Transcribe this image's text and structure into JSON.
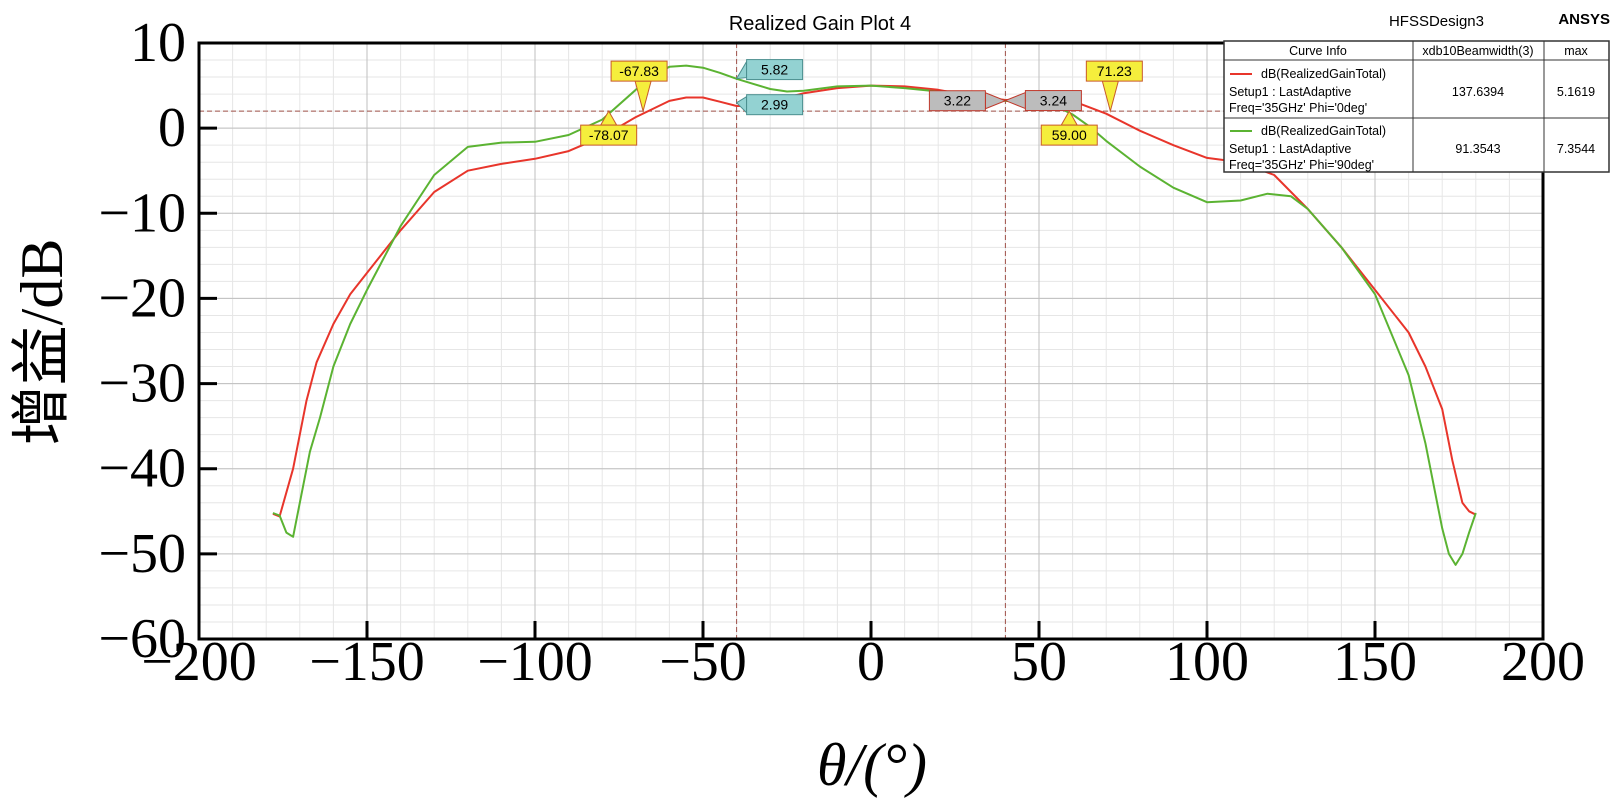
{
  "header": {
    "title": "Realized Gain Plot 4",
    "design": "HFSSDesign3",
    "brand": "ANSYS"
  },
  "chart_data": {
    "type": "line",
    "title": "Realized Gain Plot 4",
    "xlabel": "θ/(°)",
    "ylabel": "增益/dB",
    "xlim": [
      -200,
      200
    ],
    "ylim": [
      -60,
      10
    ],
    "xticks": [
      "−200",
      "−150",
      "−100",
      "−50",
      "0",
      "50",
      "100",
      "150",
      "200"
    ],
    "yticks": [
      "10",
      "0",
      "−10",
      "−20",
      "−30",
      "−40",
      "−50",
      "−60"
    ],
    "grid": true,
    "legend_position": "top-right",
    "series": [
      {
        "name": "dB(RealizedGainTotal)",
        "setup": "Setup1 : LastAdaptive",
        "variation": "Freq='35GHz' Phi='0deg'",
        "beamwidth": "137.6394",
        "max": "5.1619",
        "color": "#e8352b",
        "x": [
          -178,
          -176,
          -172,
          -168,
          -165,
          -160,
          -155,
          -150,
          -140,
          -130,
          -120,
          -110,
          -100,
          -90,
          -80,
          -70,
          -60,
          -55,
          -50,
          -45,
          -40,
          -35,
          -30,
          -20,
          -10,
          0,
          10,
          20,
          30,
          40,
          50,
          55,
          60,
          70,
          80,
          90,
          100,
          110,
          120,
          130,
          140,
          150,
          160,
          165,
          170,
          173,
          176,
          178,
          180
        ],
        "y": [
          -45.3,
          -45.6,
          -40,
          -32,
          -27.5,
          -23,
          -19.5,
          -17,
          -12,
          -7.5,
          -5,
          -4.2,
          -3.6,
          -2.7,
          -1,
          1.3,
          3.2,
          3.6,
          3.6,
          3.1,
          2.6,
          2.6,
          3.1,
          4.1,
          4.7,
          5.0,
          4.9,
          4.5,
          3.8,
          3.3,
          3.4,
          3.5,
          3.2,
          1.7,
          -0.3,
          -2,
          -3.5,
          -4,
          -5.5,
          -9.5,
          -14,
          -19,
          -24,
          -28,
          -33,
          -39,
          -44,
          -45,
          -45.4
        ]
      },
      {
        "name": "dB(RealizedGainTotal)",
        "setup": "Setup1 : LastAdaptive",
        "variation": "Freq='35GHz' Phi='90deg'",
        "beamwidth": "91.3543",
        "max": "7.3544",
        "color": "#5bb332",
        "x": [
          -178,
          -176,
          -174,
          -172,
          -170,
          -167,
          -164,
          -160,
          -155,
          -150,
          -140,
          -130,
          -120,
          -110,
          -100,
          -90,
          -80,
          -70,
          -65,
          -60,
          -55,
          -50,
          -45,
          -40,
          -35,
          -30,
          -25,
          -20,
          -10,
          0,
          10,
          20,
          30,
          40,
          50,
          55,
          60,
          65,
          70,
          80,
          90,
          100,
          110,
          118,
          125,
          130,
          140,
          150,
          160,
          165,
          170,
          172,
          174,
          176,
          178,
          180
        ],
        "y": [
          -45.2,
          -45.5,
          -47.5,
          -48,
          -44,
          -38,
          -34,
          -28,
          -23,
          -19,
          -11.5,
          -5.5,
          -2.2,
          -1.7,
          -1.6,
          -0.8,
          1.0,
          4.5,
          6.2,
          7.2,
          7.35,
          7.1,
          6.5,
          5.8,
          5.2,
          4.6,
          4.3,
          4.4,
          4.9,
          5.0,
          4.7,
          4.3,
          3.8,
          3.2,
          3.0,
          2.6,
          1.6,
          0.2,
          -1.5,
          -4.5,
          -7,
          -8.7,
          -8.5,
          -7.7,
          -8,
          -9.5,
          -14,
          -19.5,
          -29,
          -37,
          -47,
          -50,
          -51.3,
          -50,
          -47.5,
          -45.2
        ]
      }
    ],
    "markers": [
      {
        "label": "-67.83",
        "x": -67.83,
        "y": 2.0,
        "style": "yellow"
      },
      {
        "label": "-78.07",
        "x": -78.07,
        "y": 2.0,
        "style": "yellow"
      },
      {
        "label": "5.82",
        "x": -40,
        "y": 5.82,
        "style": "cyan"
      },
      {
        "label": "2.99",
        "x": -40,
        "y": 2.99,
        "style": "cyan"
      },
      {
        "label": "3.22",
        "x": 40,
        "y": 3.22,
        "style": "gray"
      },
      {
        "label": "3.24",
        "x": 40,
        "y": 3.24,
        "style": "gray"
      },
      {
        "label": "71.23",
        "x": 71.23,
        "y": 2.0,
        "style": "yellow"
      },
      {
        "label": "59.00",
        "x": 59.0,
        "y": 2.0,
        "style": "yellow"
      }
    ],
    "reference_lines": {
      "vertical": [
        -40,
        40
      ],
      "horizontal": [
        2.0
      ]
    },
    "legend": {
      "headers": [
        "Curve Info",
        "xdb10Beamwidth(3)",
        "max"
      ]
    }
  }
}
